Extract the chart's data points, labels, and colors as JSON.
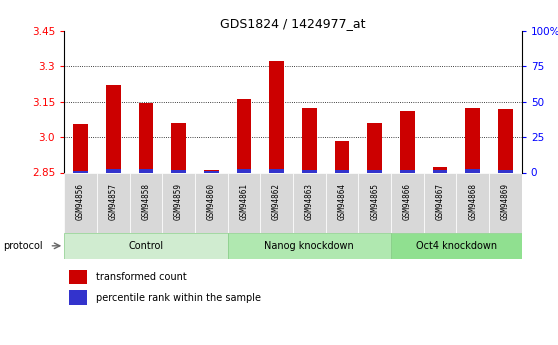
{
  "title": "GDS1824 / 1424977_at",
  "samples": [
    "GSM94856",
    "GSM94857",
    "GSM94858",
    "GSM94859",
    "GSM94860",
    "GSM94861",
    "GSM94862",
    "GSM94863",
    "GSM94864",
    "GSM94865",
    "GSM94866",
    "GSM94867",
    "GSM94868",
    "GSM94869"
  ],
  "groups": [
    {
      "label": "Control",
      "indices": [
        0,
        1,
        2,
        3,
        4
      ]
    },
    {
      "label": "Nanog knockdown",
      "indices": [
        5,
        6,
        7,
        8,
        9
      ]
    },
    {
      "label": "Oct4 knockdown",
      "indices": [
        10,
        11,
        12,
        13
      ]
    }
  ],
  "transformed_count": [
    3.055,
    3.22,
    3.145,
    3.06,
    2.862,
    3.16,
    3.325,
    3.125,
    2.985,
    3.06,
    3.11,
    2.875,
    3.125,
    3.12
  ],
  "percentile_rank_scaled": [
    0.006,
    0.013,
    0.013,
    0.009,
    0.007,
    0.013,
    0.015,
    0.011,
    0.011,
    0.012,
    0.011,
    0.011,
    0.013,
    0.012
  ],
  "ymin": 2.85,
  "ymax": 3.45,
  "yticks_left": [
    2.85,
    3.0,
    3.15,
    3.3,
    3.45
  ],
  "yticks_right": [
    0,
    25,
    50,
    75,
    100
  ],
  "bar_color_red": "#cc0000",
  "bar_color_blue": "#3333cc",
  "group_colors": [
    "#d0ecd0",
    "#b0e8b0",
    "#90e090"
  ],
  "tick_bg": "#d8d8d8",
  "legend_red_label": "transformed count",
  "legend_blue_label": "percentile rank within the sample",
  "protocol_label": "protocol"
}
